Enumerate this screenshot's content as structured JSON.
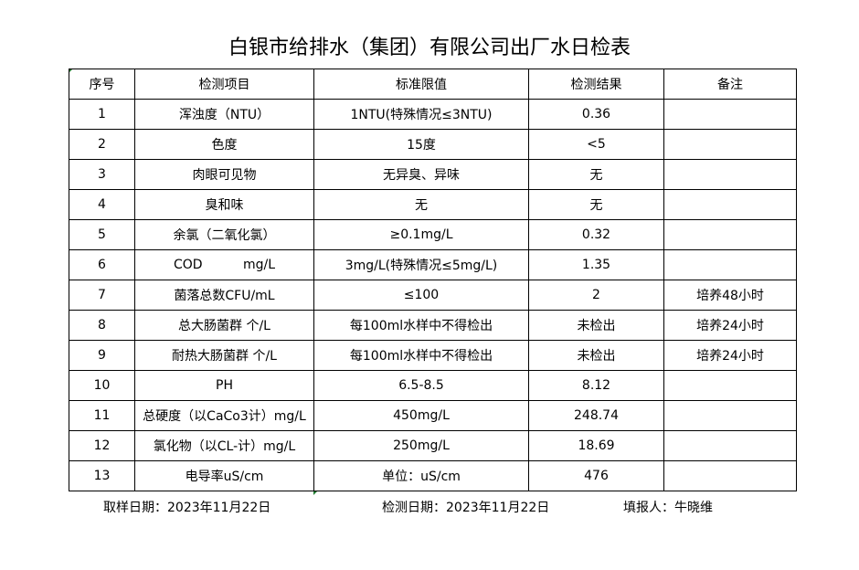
{
  "title": "白银市给排水（集团）有限公司出厂水日检表",
  "table": {
    "headers": [
      "序号",
      "检测项目",
      "标准限值",
      "检测结果",
      "备注"
    ],
    "rows": [
      [
        "1",
        "浑浊度（NTU）",
        "1NTU(特殊情况≤3NTU)",
        "0.36",
        ""
      ],
      [
        "2",
        "色度",
        "15度",
        "<5",
        ""
      ],
      [
        "3",
        "肉眼可见物",
        "无异臭、异味",
        "无",
        ""
      ],
      [
        "4",
        "臭和味",
        "无",
        "无",
        ""
      ],
      [
        "5",
        "余氯（二氧化氯）",
        "≥0.1mg/L",
        "0.32",
        ""
      ],
      [
        "6",
        "COD          mg/L",
        "3mg/L(特殊情况≤5mg/L)",
        "1.35",
        ""
      ],
      [
        "7",
        "菌落总数CFU/mL",
        "≤100",
        "2",
        "培养48小时"
      ],
      [
        "8",
        "总大肠菌群 个/L",
        "每100ml水样中不得检出",
        "未检出",
        "培养24小时"
      ],
      [
        "9",
        "耐热大肠菌群 个/L",
        "每100ml水样中不得检出",
        "未检出",
        "培养24小时"
      ],
      [
        "10",
        "PH",
        "6.5-8.5",
        "8.12",
        ""
      ],
      [
        "11",
        "总硬度（以CaCo3计）mg/L",
        "450mg/L",
        "248.74",
        ""
      ],
      [
        "12",
        "氯化物（以CL-计）mg/L",
        "250mg/L",
        "18.69",
        ""
      ],
      [
        "13",
        "电导率uS/cm",
        "单位：uS/cm",
        "476",
        ""
      ]
    ]
  },
  "footer": {
    "sampling_date": "取样日期：2023年11月22日",
    "test_date": "检测日期：2023年11月22日",
    "reporter": "填报人：牛晓维"
  },
  "colors": {
    "cell_marker": "#1e7b2e"
  }
}
